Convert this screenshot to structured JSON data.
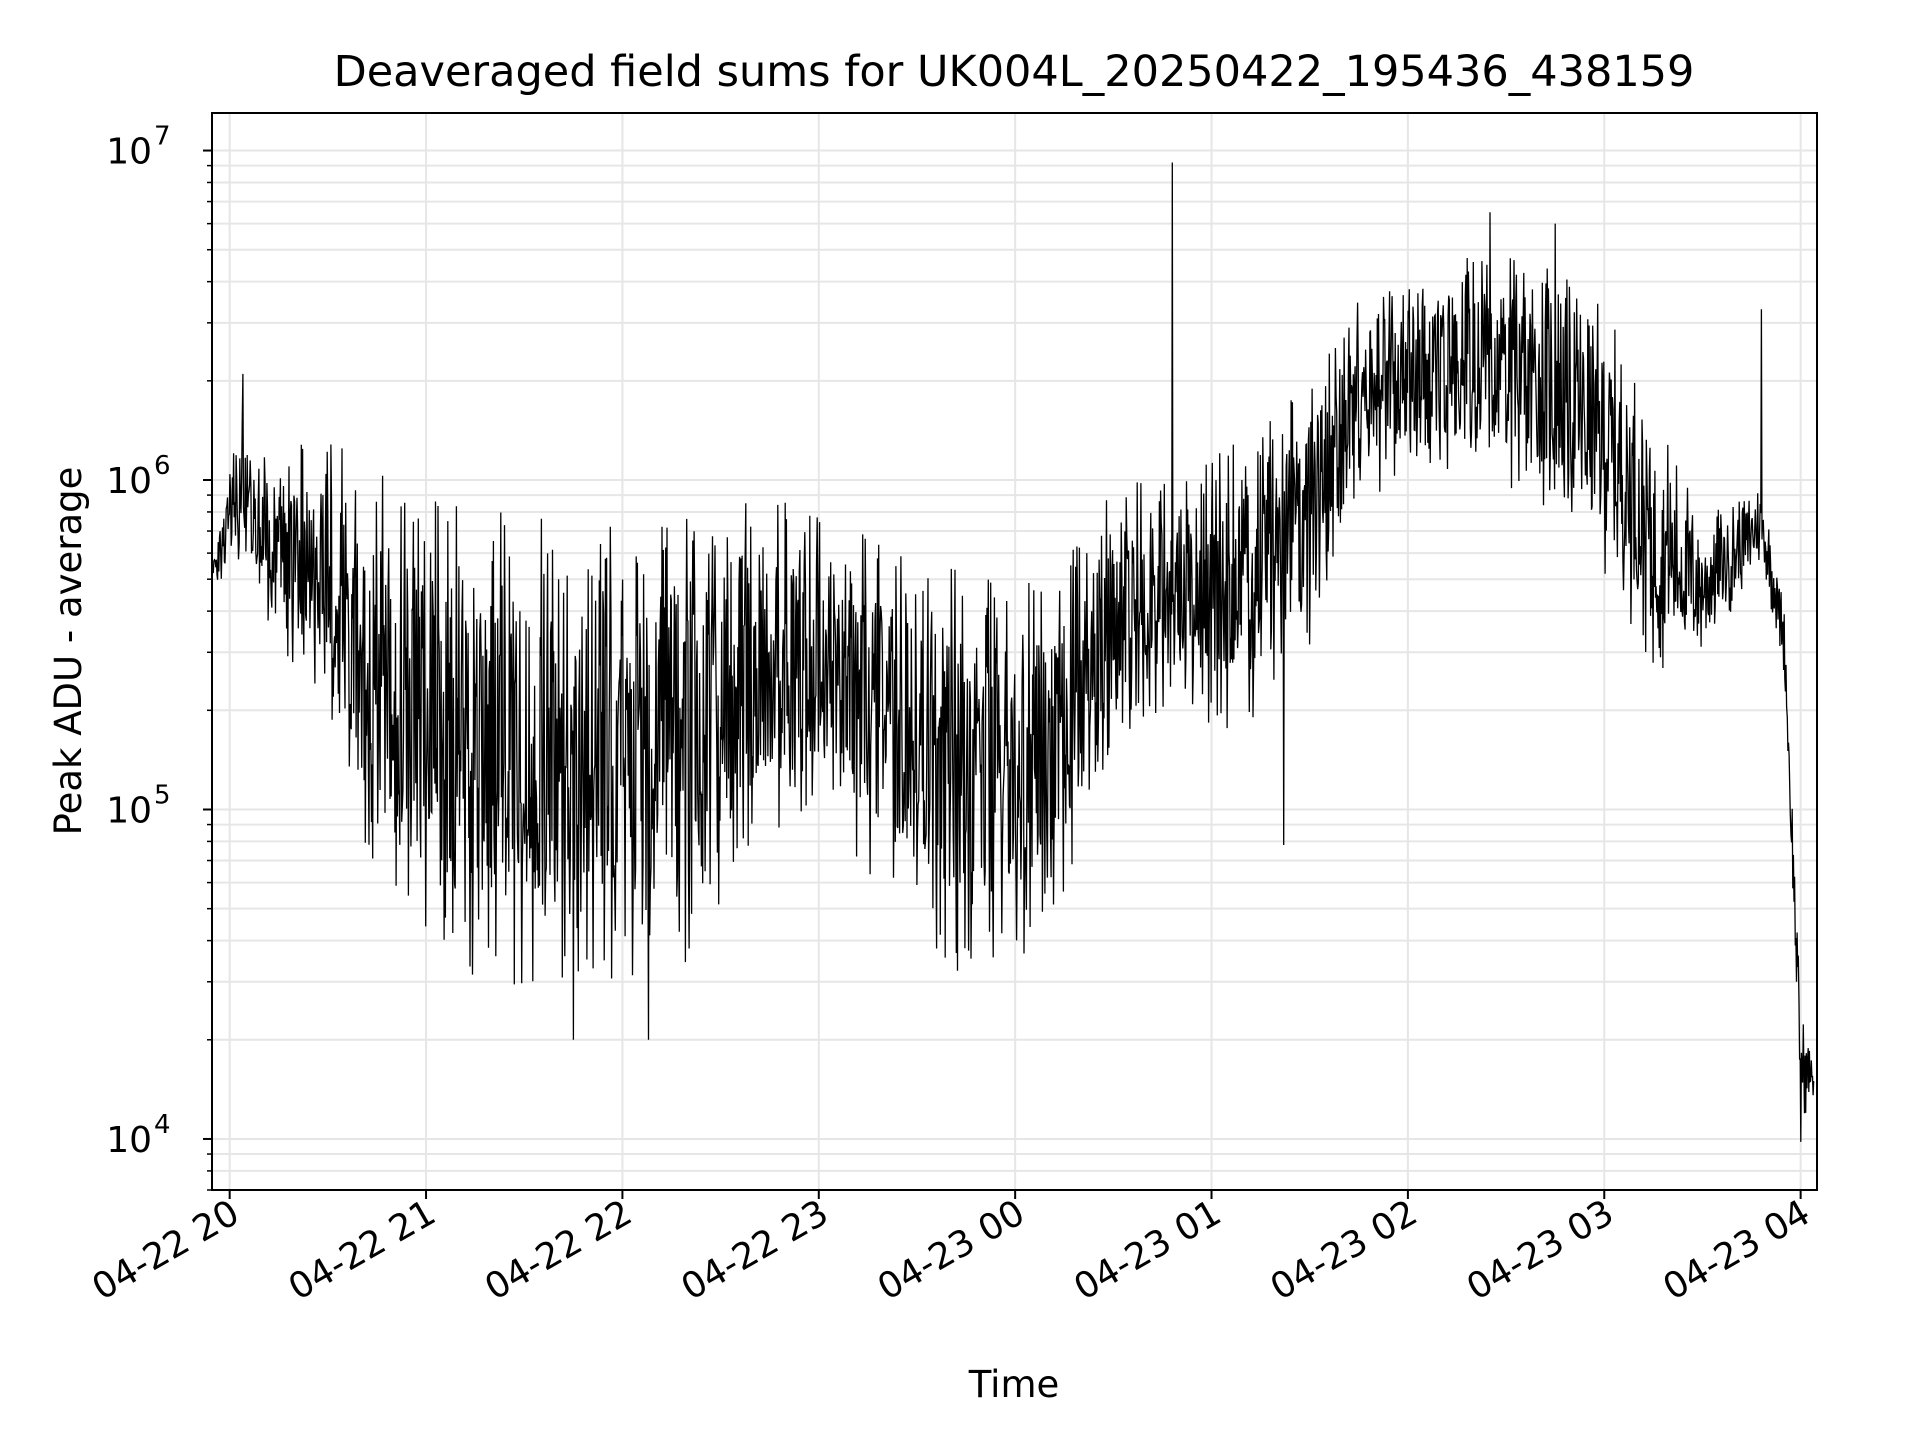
{
  "chart_data": {
    "type": "line",
    "title": "Deaveraged field sums for UK004L_20250422_195436_438159",
    "xlabel": "Time",
    "ylabel": "Peak ADU - average",
    "yscale": "log",
    "ylim": [
      7000,
      13000000
    ],
    "xlim": [
      "2025-04-22 19:54:36",
      "2025-04-23 04:05:00"
    ],
    "grid": true,
    "x_ticks": [
      {
        "label": "04-22 20",
        "t": "2025-04-22 20:00"
      },
      {
        "label": "04-22 21",
        "t": "2025-04-22 21:00"
      },
      {
        "label": "04-22 22",
        "t": "2025-04-22 22:00"
      },
      {
        "label": "04-22 23",
        "t": "2025-04-22 23:00"
      },
      {
        "label": "04-23 00",
        "t": "2025-04-23 00:00"
      },
      {
        "label": "04-23 01",
        "t": "2025-04-23 01:00"
      },
      {
        "label": "04-23 02",
        "t": "2025-04-23 02:00"
      },
      {
        "label": "04-23 03",
        "t": "2025-04-23 03:00"
      },
      {
        "label": "04-23 04",
        "t": "2025-04-23 04:00"
      }
    ],
    "y_ticks": [
      {
        "base": "10",
        "exp": "4",
        "value": 10000
      },
      {
        "base": "10",
        "exp": "5",
        "value": 100000
      },
      {
        "base": "10",
        "exp": "6",
        "value": 1000000
      },
      {
        "base": "10",
        "exp": "7",
        "value": 10000000
      }
    ],
    "series": [
      {
        "color": "#000000",
        "envelope": [
          {
            "t": "2025-04-22 19:55",
            "low": 450000,
            "high": 600000
          },
          {
            "t": "2025-04-22 20:03",
            "low": 500000,
            "high": 1600000
          },
          {
            "t": "2025-04-22 20:15",
            "low": 300000,
            "high": 1300000
          },
          {
            "t": "2025-04-22 20:30",
            "low": 180000,
            "high": 1400000
          },
          {
            "t": "2025-04-22 20:42",
            "low": 70000,
            "high": 1200000
          },
          {
            "t": "2025-04-22 21:00",
            "low": 32000,
            "high": 1000000
          },
          {
            "t": "2025-04-22 21:20",
            "low": 26000,
            "high": 900000
          },
          {
            "t": "2025-04-22 21:40",
            "low": 26000,
            "high": 900000
          },
          {
            "t": "2025-04-22 22:00",
            "low": 28000,
            "high": 800000
          },
          {
            "t": "2025-04-22 22:20",
            "low": 30000,
            "high": 900000
          },
          {
            "t": "2025-04-22 22:40",
            "low": 70000,
            "high": 1000000
          },
          {
            "t": "2025-04-22 23:00",
            "low": 100000,
            "high": 900000
          },
          {
            "t": "2025-04-22 23:20",
            "low": 50000,
            "high": 700000
          },
          {
            "t": "2025-04-22 23:40",
            "low": 30000,
            "high": 600000
          },
          {
            "t": "2025-04-23 00:00",
            "low": 30000,
            "high": 500000
          },
          {
            "t": "2025-04-23 00:15",
            "low": 50000,
            "high": 600000
          },
          {
            "t": "2025-04-23 00:30",
            "low": 150000,
            "high": 1000000
          },
          {
            "t": "2025-04-23 00:48",
            "low": 200000,
            "high": 1200000
          },
          {
            "t": "2025-04-23 01:10",
            "low": 150000,
            "high": 1400000
          },
          {
            "t": "2025-04-23 01:30",
            "low": 300000,
            "high": 2200000
          },
          {
            "t": "2025-04-23 01:45",
            "low": 800000,
            "high": 3800000
          },
          {
            "t": "2025-04-23 02:00",
            "low": 1000000,
            "high": 4500000
          },
          {
            "t": "2025-04-23 02:20",
            "low": 1000000,
            "high": 5200000
          },
          {
            "t": "2025-04-23 02:40",
            "low": 800000,
            "high": 5000000
          },
          {
            "t": "2025-04-23 03:00",
            "low": 500000,
            "high": 3500000
          },
          {
            "t": "2025-04-23 03:15",
            "low": 250000,
            "high": 1800000
          },
          {
            "t": "2025-04-23 03:30",
            "low": 280000,
            "high": 800000
          },
          {
            "t": "2025-04-23 03:48",
            "low": 550000,
            "high": 1000000
          },
          {
            "t": "2025-04-23 03:55",
            "low": 250000,
            "high": 450000
          },
          {
            "t": "2025-04-23 04:00",
            "low": 11000,
            "high": 25000
          },
          {
            "t": "2025-04-23 04:04",
            "low": 13000,
            "high": 18000
          }
        ],
        "spikes": [
          {
            "t": "2025-04-22 20:04",
            "value": 2100000
          },
          {
            "t": "2025-04-23 00:48",
            "value": 9200000
          },
          {
            "t": "2025-04-23 02:25",
            "value": 6500000
          },
          {
            "t": "2025-04-23 02:45",
            "value": 6000000
          },
          {
            "t": "2025-04-23 03:48",
            "value": 3300000
          },
          {
            "t": "2025-04-22 22:08",
            "value": 20000
          },
          {
            "t": "2025-04-22 21:45",
            "value": 20000
          },
          {
            "t": "2025-04-23 01:22",
            "value": 78000
          },
          {
            "t": "2025-04-23 04:00",
            "value": 9800
          }
        ]
      }
    ]
  }
}
